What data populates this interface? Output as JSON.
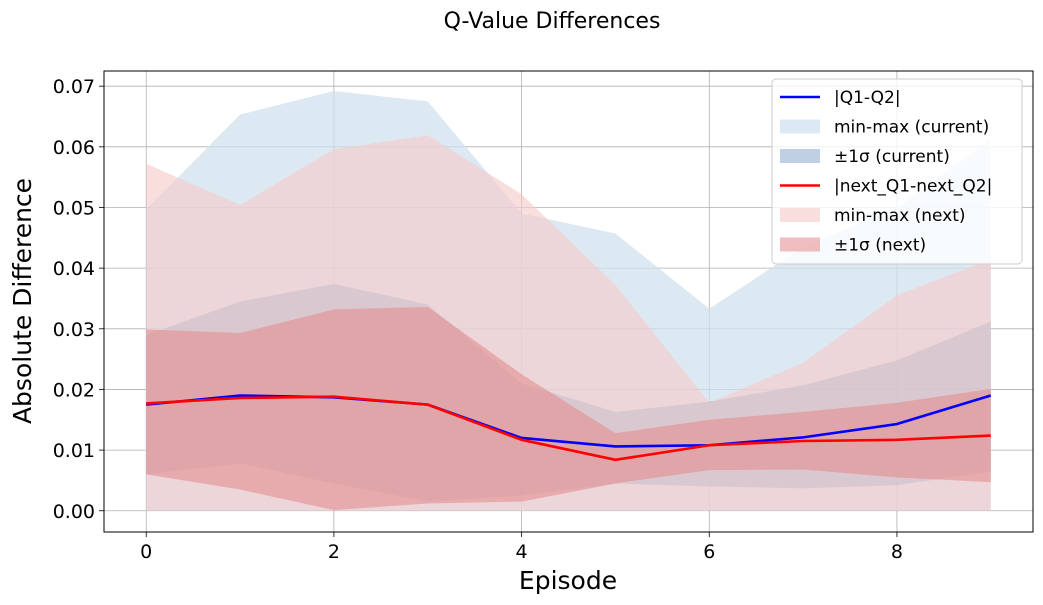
{
  "chart_data": {
    "type": "area",
    "title": "Q-Value Differences",
    "xlabel": "Episode",
    "ylabel": "Absolute Difference",
    "xlim": [
      -0.45,
      9.45
    ],
    "ylim": [
      -0.0035,
      0.0725
    ],
    "xticks": [
      0,
      2,
      4,
      6,
      8
    ],
    "xtick_labels": [
      "0",
      "2",
      "4",
      "6",
      "8"
    ],
    "yticks": [
      0.0,
      0.01,
      0.02,
      0.03,
      0.04,
      0.05,
      0.06,
      0.07
    ],
    "ytick_labels": [
      "0.00",
      "0.01",
      "0.02",
      "0.03",
      "0.04",
      "0.05",
      "0.06",
      "0.07"
    ],
    "grid": true,
    "legend_position": "top-right",
    "x": [
      0,
      1,
      2,
      3,
      4,
      5,
      6,
      7,
      8,
      9
    ],
    "series": [
      {
        "name": "|Q1-Q2|",
        "kind": "line",
        "color": "#0000ff",
        "values": [
          0.0175,
          0.019,
          0.0187,
          0.0175,
          0.012,
          0.0106,
          0.0108,
          0.0121,
          0.0143,
          0.019
        ]
      },
      {
        "name": "min-max (current)",
        "kind": "band",
        "color": "#cfe0ef",
        "opacity": 0.72,
        "lower": [
          0.0,
          0.0,
          0.0,
          0.0,
          0.0,
          0.0,
          0.0,
          0.0,
          0.0,
          0.0
        ],
        "upper": [
          0.0497,
          0.0653,
          0.0692,
          0.0675,
          0.049,
          0.0457,
          0.0333,
          0.0435,
          0.05,
          0.0612
        ]
      },
      {
        "name": "±1σ (current)",
        "kind": "band",
        "color": "#88a9ca",
        "opacity": 0.55,
        "lower": [
          0.006,
          0.0078,
          0.0045,
          0.0015,
          0.0025,
          0.0045,
          0.004,
          0.0037,
          0.0042,
          0.0065
        ],
        "upper": [
          0.029,
          0.0345,
          0.0374,
          0.034,
          0.021,
          0.0163,
          0.018,
          0.0207,
          0.0248,
          0.0312
        ]
      },
      {
        "name": "|next_Q1-next_Q2|",
        "kind": "line",
        "color": "#ff0000",
        "values": [
          0.0177,
          0.0186,
          0.0188,
          0.0175,
          0.0117,
          0.0084,
          0.0108,
          0.0115,
          0.0117,
          0.0124
        ]
      },
      {
        "name": "min-max (next)",
        "kind": "band",
        "color": "#f6c9c9",
        "opacity": 0.62,
        "lower": [
          0.0,
          0.0,
          0.0,
          0.0,
          0.0,
          0.0,
          0.0,
          0.0,
          0.0,
          0.0
        ],
        "upper": [
          0.0572,
          0.0504,
          0.0596,
          0.0619,
          0.0522,
          0.0372,
          0.0178,
          0.0244,
          0.0355,
          0.0415
        ]
      },
      {
        "name": "±1σ (next)",
        "kind": "band",
        "color": "#e48989",
        "opacity": 0.55,
        "lower": [
          0.006,
          0.0035,
          0.0001,
          0.0012,
          0.0015,
          0.0045,
          0.0067,
          0.0068,
          0.0055,
          0.0047
        ],
        "upper": [
          0.0299,
          0.0293,
          0.0332,
          0.0336,
          0.0225,
          0.0128,
          0.015,
          0.0163,
          0.0178,
          0.0201
        ]
      }
    ]
  }
}
